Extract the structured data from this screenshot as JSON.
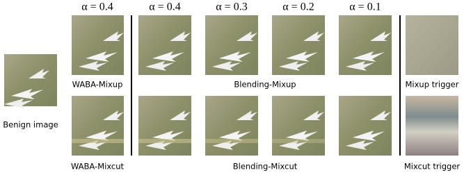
{
  "alpha_labels": [
    "α = 0.4",
    "α = 0.4",
    "α = 0.3",
    "α = 0.2",
    "α = 0.1"
  ],
  "benign_label": "Benign image",
  "rows": [
    {
      "method_label": "WABA-Mixup",
      "blend_label": "Blending-Mixup",
      "trigger_label": "Mixup trigger"
    },
    {
      "method_label": "WABA-Mixcut",
      "blend_label": "Blending-Mixcut",
      "trigger_label": "Mixcut trigger"
    }
  ]
}
